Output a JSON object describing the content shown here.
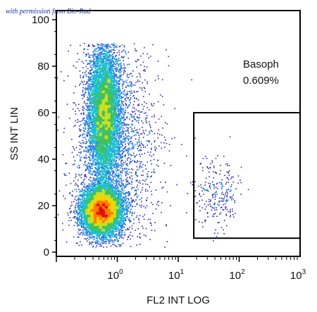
{
  "watermark": "with permission from Bio-Rad",
  "chart_data": {
    "type": "scatter",
    "subtype": "flow-cytometry-density-dot-plot",
    "xlabel": "FL2 INT LOG",
    "ylabel": "SS INT LIN",
    "x_scale": "log",
    "xlim": [
      0.1,
      1000
    ],
    "ylim": [
      0,
      100
    ],
    "x_ticks": [
      {
        "value": 1,
        "base": "10",
        "exp": "0"
      },
      {
        "value": 10,
        "base": "10",
        "exp": "1"
      },
      {
        "value": 100,
        "base": "10",
        "exp": "2"
      },
      {
        "value": 1000,
        "base": "10",
        "exp": "3"
      }
    ],
    "y_ticks": [
      0,
      20,
      40,
      60,
      80,
      100
    ],
    "color_scale": [
      "#2a2aa8",
      "#1f7fe0",
      "#18c0d0",
      "#40c060",
      "#c8e020",
      "#ffd000",
      "#ff7a00",
      "#e01010"
    ],
    "populations": [
      {
        "x_center": 0.55,
        "y_center": 18,
        "x_log_spread": 0.16,
        "y_spread": 5,
        "weight": 9000
      },
      {
        "x_center": 0.6,
        "y_center": 60,
        "x_log_spread": 0.13,
        "y_spread": 14,
        "weight": 7500
      },
      {
        "x_center": 0.9,
        "y_center": 45,
        "x_log_spread": 0.35,
        "y_spread": 25,
        "weight": 2200
      },
      {
        "x_center": 40,
        "y_center": 25,
        "x_log_spread": 0.18,
        "y_spread": 8,
        "weight": 260
      }
    ],
    "gate": {
      "label": "Basoph",
      "percent": "0.609%",
      "x_range": [
        18,
        1000
      ],
      "y_range": [
        6,
        60
      ]
    }
  }
}
